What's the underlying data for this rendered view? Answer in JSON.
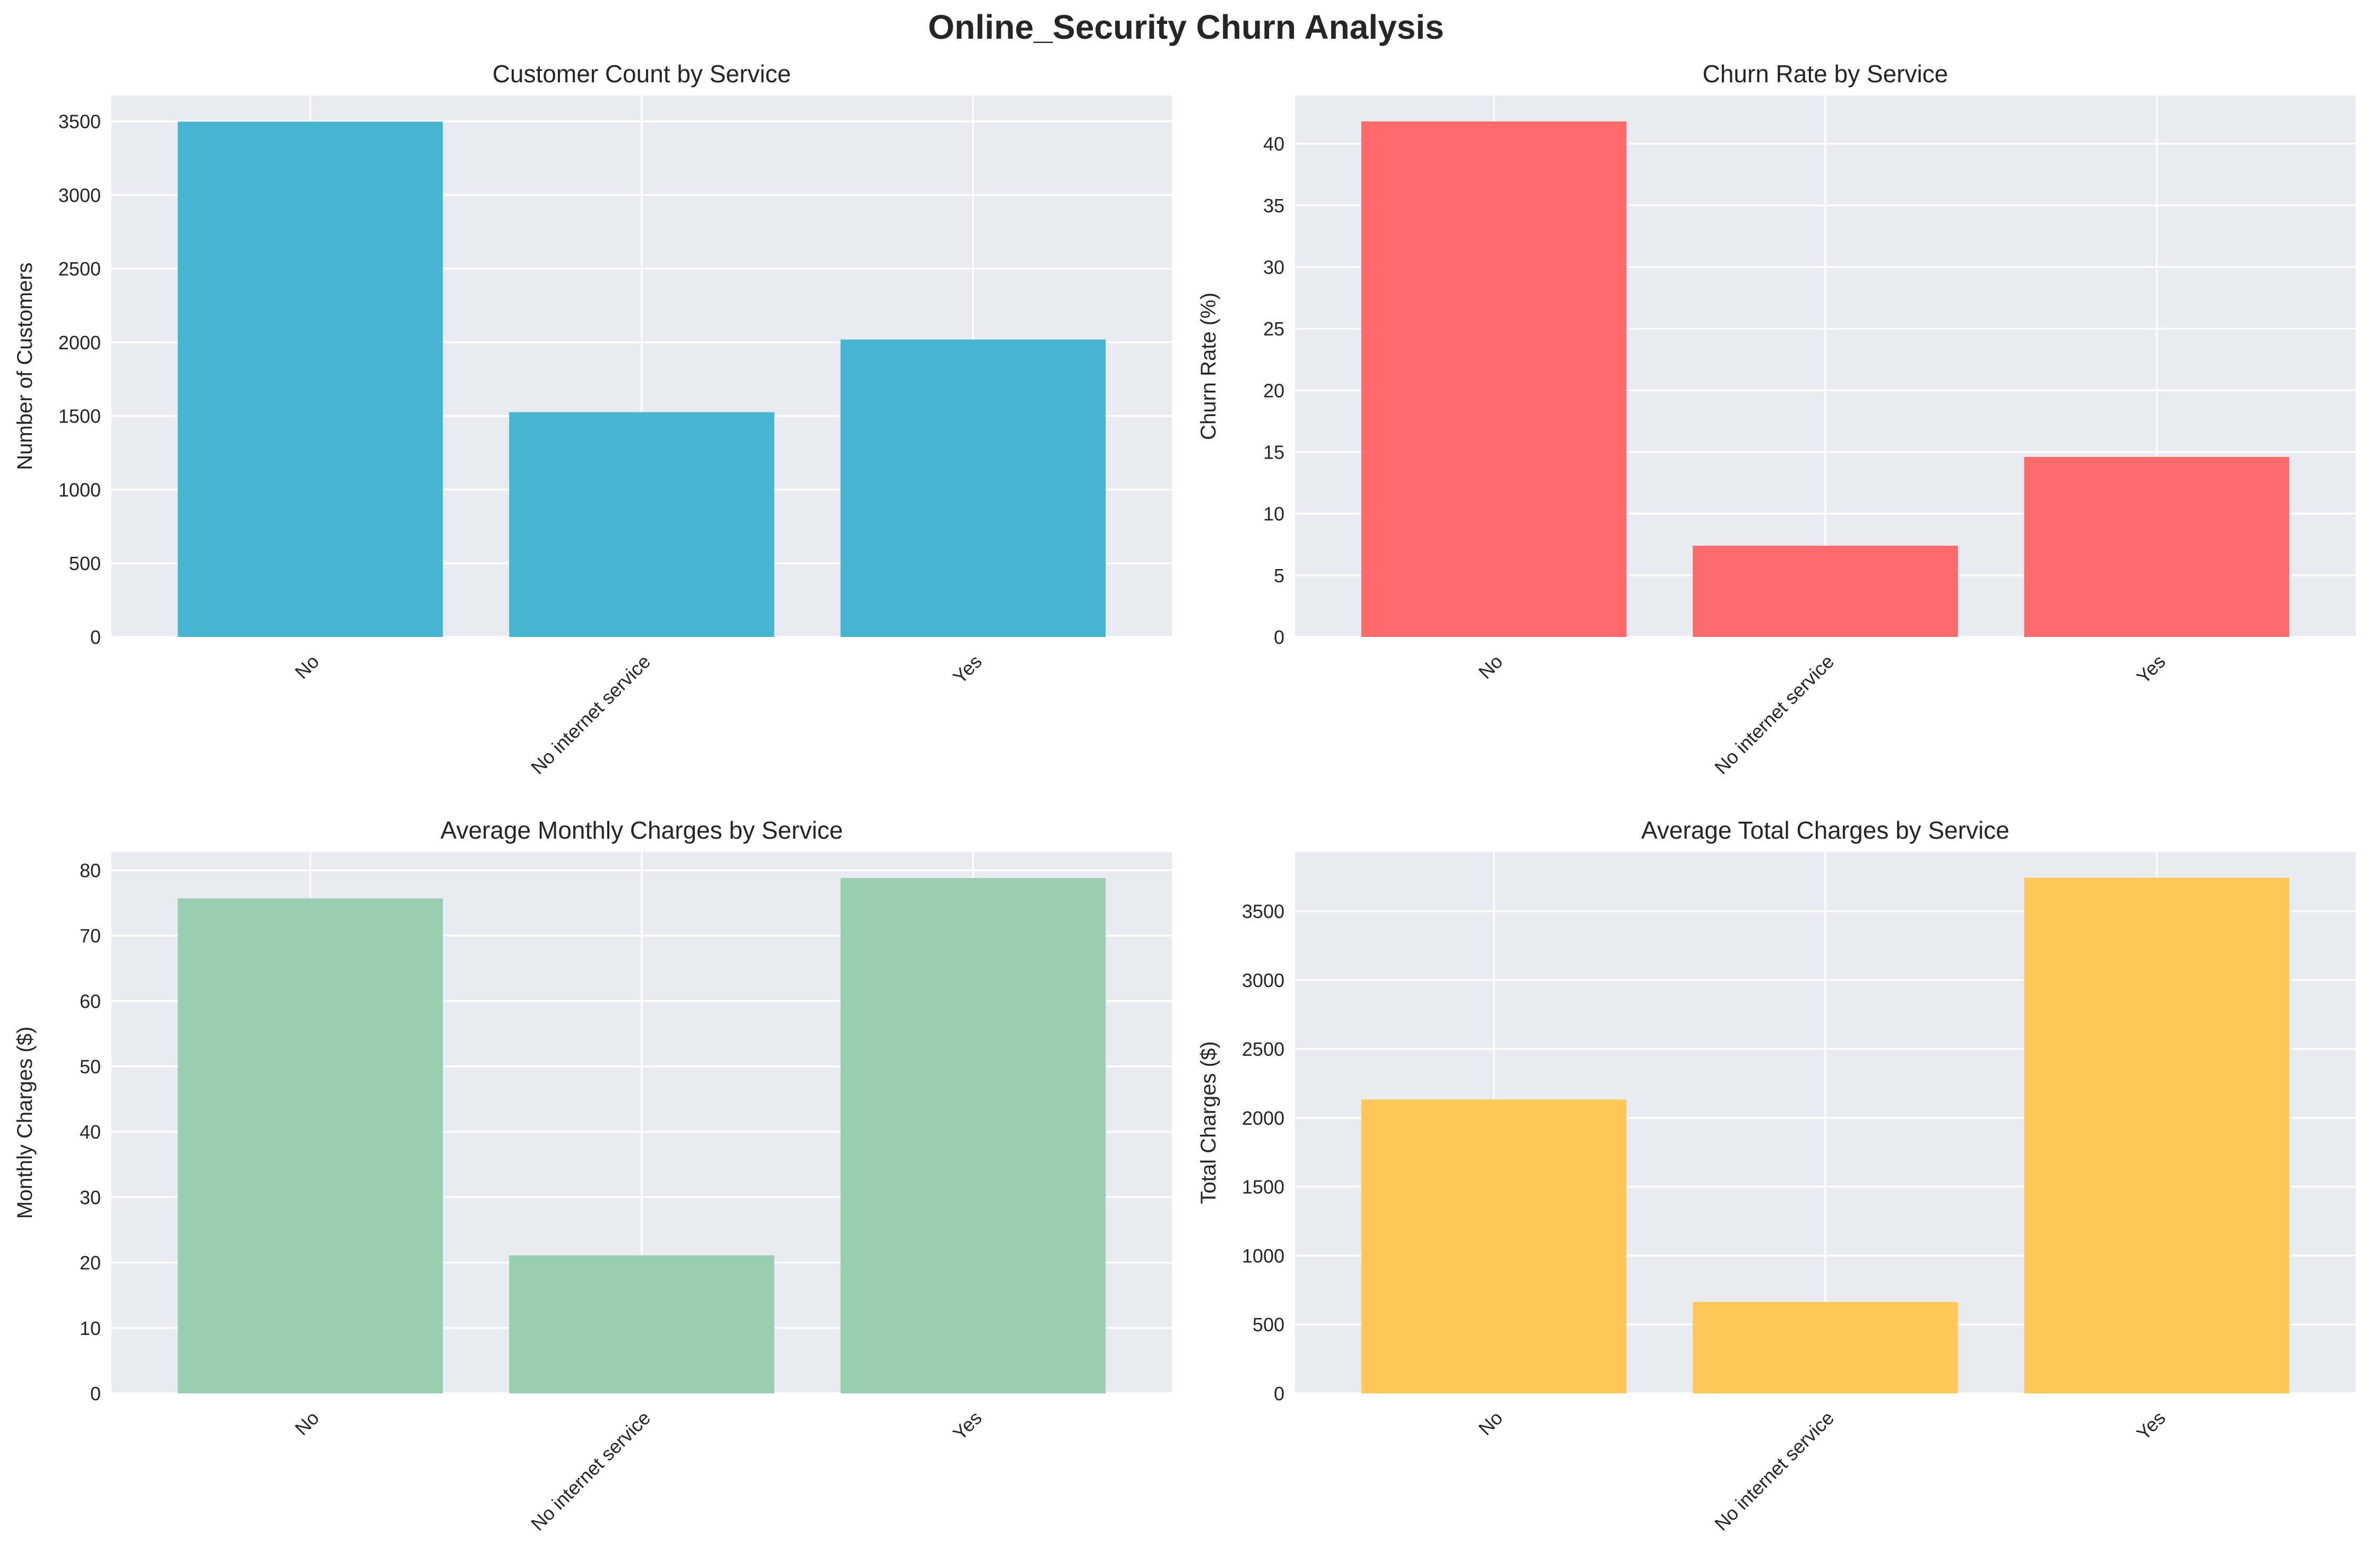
{
  "title": "Online_Security Churn Analysis",
  "chart_data": [
    {
      "type": "bar",
      "title": "Customer Count by Service",
      "categories": [
        "No",
        "No internet service",
        "Yes"
      ],
      "values": [
        3498,
        1526,
        2019
      ],
      "xlabel": "",
      "ylabel": "Number of Customers",
      "ylim": [
        0,
        3675
      ],
      "yticks": [
        0,
        500,
        1000,
        1500,
        2000,
        2500,
        3000,
        3500
      ],
      "color": "#48b5d0",
      "grid": true
    },
    {
      "type": "bar",
      "title": "Churn Rate by Service",
      "categories": [
        "No",
        "No internet service",
        "Yes"
      ],
      "values": [
        41.8,
        7.4,
        14.6
      ],
      "xlabel": "",
      "ylabel": "Churn Rate (%)",
      "ylim": [
        0,
        43.9
      ],
      "yticks": [
        0,
        5,
        10,
        15,
        20,
        25,
        30,
        35,
        40
      ],
      "color": "#ff6b6b",
      "grid": true
    },
    {
      "type": "bar",
      "title": "Average Monthly Charges by Service",
      "categories": [
        "No",
        "No internet service",
        "Yes"
      ],
      "values": [
        75.7,
        21.1,
        78.8
      ],
      "xlabel": "",
      "ylabel": "Monthly Charges ($)",
      "ylim": [
        0,
        82.8
      ],
      "yticks": [
        0,
        10,
        20,
        30,
        40,
        50,
        60,
        70,
        80
      ],
      "color": "#98cfb1",
      "grid": true
    },
    {
      "type": "bar",
      "title": "Average Total Charges by Service",
      "categories": [
        "No",
        "No internet service",
        "Yes"
      ],
      "values": [
        2133,
        663,
        3743
      ],
      "xlabel": "",
      "ylabel": "Total Charges ($)",
      "ylim": [
        0,
        3930
      ],
      "yticks": [
        0,
        500,
        1000,
        1500,
        2000,
        2500,
        3000,
        3500
      ],
      "color": "#fdc857",
      "grid": true
    }
  ]
}
